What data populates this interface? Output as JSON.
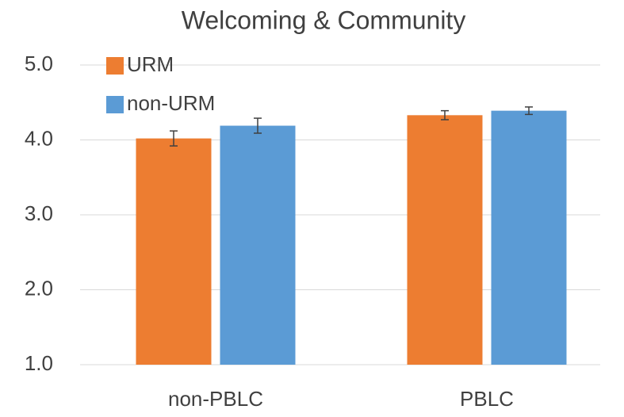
{
  "chart_data": {
    "type": "bar",
    "title": "Welcoming & Community",
    "categories": [
      "non-PBLC",
      "PBLC"
    ],
    "series": [
      {
        "name": "URM",
        "color": "#ed7d31",
        "values": [
          4.02,
          4.33
        ],
        "errors": [
          0.1,
          0.06
        ]
      },
      {
        "name": "non-URM",
        "color": "#5b9bd5",
        "values": [
          4.19,
          4.39
        ],
        "errors": [
          0.1,
          0.05
        ]
      }
    ],
    "ylim": [
      1,
      5
    ],
    "yticks": [
      {
        "value": 1,
        "label": "1.0"
      },
      {
        "value": 2,
        "label": "2.0"
      },
      {
        "value": 3,
        "label": "3.0"
      },
      {
        "value": 4,
        "label": "4.0"
      },
      {
        "value": 5,
        "label": "5.0"
      }
    ],
    "grid": true,
    "legend": "top-left"
  }
}
